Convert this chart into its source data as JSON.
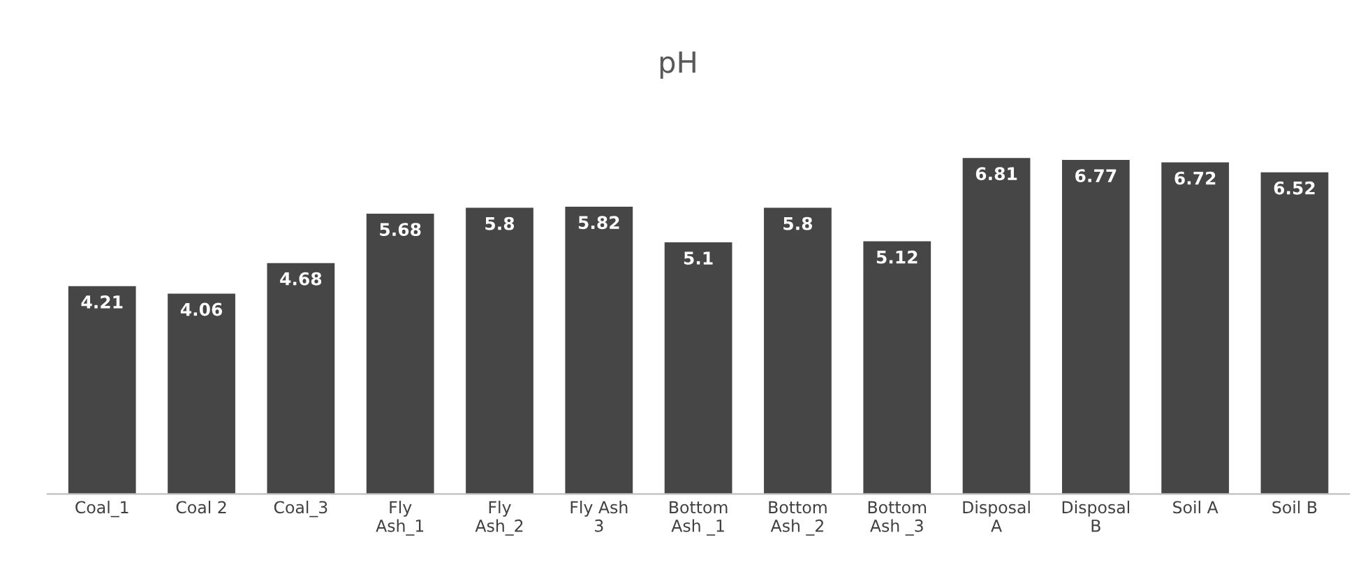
{
  "chart_data": {
    "type": "bar",
    "title": "pH",
    "categories": [
      "Coal_1",
      "Coal 2",
      "Coal_3",
      "Fly\nAsh_1",
      "Fly\nAsh_2",
      "Fly Ash\n3",
      "Bottom\nAsh _1",
      "Bottom\nAsh _2",
      "Bottom\nAsh _3",
      "Disposal\nA",
      "Disposal\nB",
      "Soil A",
      "Soil B"
    ],
    "values": [
      4.21,
      4.06,
      4.68,
      5.68,
      5.8,
      5.82,
      5.1,
      5.8,
      5.12,
      6.81,
      6.77,
      6.72,
      6.52
    ],
    "color": "#464646",
    "data_labels": true,
    "grid": false,
    "tick_labels": "x"
  }
}
